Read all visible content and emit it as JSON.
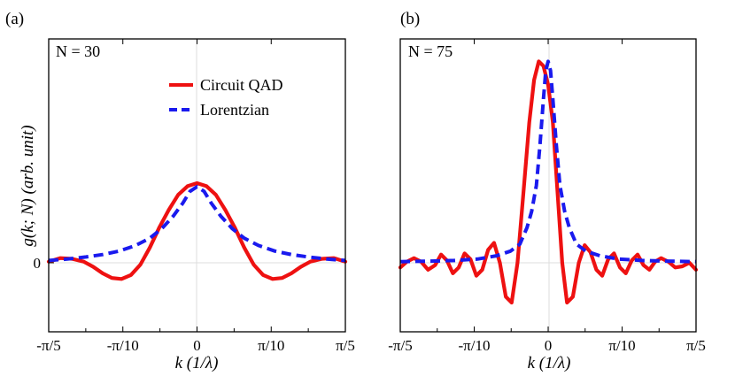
{
  "figure": {
    "colors": {
      "circuit": "#ee1111",
      "lorentzian": "#1a1aee",
      "axes": "#000000",
      "grid": "#dddddd"
    }
  },
  "chart_data": [
    {
      "type": "line",
      "panel_label": "(a)",
      "annotation": "N = 30",
      "xlabel": "k (1/λ)",
      "ylabel": "g(k; N) (arb. unit)",
      "xlim": [
        -0.6283,
        0.6283
      ],
      "ylim": [
        -0.26,
        0.88
      ],
      "x_ticks": [
        {
          "value": -0.6283,
          "label": "-π/5"
        },
        {
          "value": -0.3142,
          "label": "-π/10"
        },
        {
          "value": 0,
          "label": "0"
        },
        {
          "value": 0.3142,
          "label": "π/10"
        },
        {
          "value": 0.6283,
          "label": "π/5"
        }
      ],
      "y_ticks": [
        {
          "value": 0,
          "label": "0"
        }
      ],
      "grid": "faint gridlines at x = 0 and y = 0",
      "legend_placement": "top-center",
      "series": [
        {
          "name": "Circuit QAD",
          "style": "solid",
          "color": "#ee1111",
          "x": [
            -0.63,
            -0.58,
            -0.53,
            -0.48,
            -0.44,
            -0.4,
            -0.36,
            -0.32,
            -0.28,
            -0.24,
            -0.2,
            -0.16,
            -0.12,
            -0.08,
            -0.04,
            0,
            0.04,
            0.08,
            0.12,
            0.16,
            0.2,
            0.24,
            0.28,
            0.32,
            0.36,
            0.4,
            0.44,
            0.48,
            0.53,
            0.58,
            0.63
          ],
          "y": [
            0.005,
            0.02,
            0.017,
            0.005,
            -0.017,
            -0.045,
            -0.065,
            -0.069,
            -0.052,
            -0.008,
            0.065,
            0.15,
            0.225,
            0.29,
            0.327,
            0.34,
            0.327,
            0.29,
            0.225,
            0.15,
            0.065,
            -0.008,
            -0.052,
            -0.069,
            -0.065,
            -0.045,
            -0.017,
            0.005,
            0.017,
            0.02,
            0.005
          ]
        },
        {
          "name": "Lorentzian",
          "style": "dashed",
          "color": "#1a1aee",
          "x": [
            -0.63,
            -0.55,
            -0.47,
            -0.4,
            -0.33,
            -0.26,
            -0.2,
            -0.15,
            -0.1,
            -0.06,
            -0.03,
            0,
            0.03,
            0.06,
            0.1,
            0.15,
            0.2,
            0.26,
            0.33,
            0.4,
            0.47,
            0.55,
            0.63
          ],
          "y": [
            0.01,
            0.016,
            0.025,
            0.035,
            0.05,
            0.074,
            0.105,
            0.145,
            0.2,
            0.255,
            0.305,
            0.325,
            0.305,
            0.255,
            0.2,
            0.145,
            0.105,
            0.074,
            0.05,
            0.035,
            0.025,
            0.016,
            0.01
          ]
        }
      ]
    },
    {
      "type": "line",
      "panel_label": "(b)",
      "annotation": "N = 75",
      "xlabel": "k (1/λ)",
      "ylabel": "",
      "xlim": [
        -0.6283,
        0.6283
      ],
      "ylim": [
        -0.26,
        0.88
      ],
      "x_ticks": [
        {
          "value": -0.6283,
          "label": "-π/5"
        },
        {
          "value": -0.3142,
          "label": "-π/10"
        },
        {
          "value": 0,
          "label": "0"
        },
        {
          "value": 0.3142,
          "label": "π/10"
        },
        {
          "value": 0.6283,
          "label": "π/5"
        }
      ],
      "grid": "faint gridlines at x = 0 and y = 0",
      "series": [
        {
          "name": "Circuit QAD",
          "style": "solid",
          "color": "#ee1111",
          "x": [
            -0.63,
            -0.6,
            -0.57,
            -0.54,
            -0.51,
            -0.48,
            -0.455,
            -0.43,
            -0.405,
            -0.38,
            -0.355,
            -0.33,
            -0.305,
            -0.28,
            -0.255,
            -0.23,
            -0.205,
            -0.18,
            -0.155,
            -0.13,
            -0.105,
            -0.08,
            -0.06,
            -0.04,
            -0.02,
            0,
            0.02,
            0.04,
            0.06,
            0.08,
            0.105,
            0.13,
            0.155,
            0.18,
            0.205,
            0.23,
            0.255,
            0.28,
            0.305,
            0.33,
            0.355,
            0.38,
            0.405,
            0.43,
            0.455,
            0.48,
            0.51,
            0.54,
            0.57,
            0.6,
            0.63
          ],
          "y": [
            -0.02,
            0.005,
            0.02,
            0.005,
            -0.03,
            -0.01,
            0.035,
            0.01,
            -0.045,
            -0.02,
            0.04,
            0.015,
            -0.055,
            -0.03,
            0.055,
            0.085,
            0.0,
            -0.145,
            -0.17,
            0.0,
            0.3,
            0.6,
            0.78,
            0.86,
            0.84,
            0.76,
            0.6,
            0.3,
            0.0,
            -0.17,
            -0.145,
            0.0,
            0.075,
            0.045,
            -0.03,
            -0.055,
            0.015,
            0.04,
            -0.02,
            -0.045,
            0.01,
            0.035,
            -0.01,
            -0.03,
            0.005,
            0.02,
            0.005,
            -0.02,
            -0.015,
            0.0,
            -0.03
          ]
        },
        {
          "name": "Lorentzian",
          "style": "dashed",
          "color": "#1a1aee",
          "x": [
            -0.63,
            -0.5,
            -0.4,
            -0.3,
            -0.22,
            -0.16,
            -0.12,
            -0.09,
            -0.07,
            -0.05,
            -0.035,
            -0.02,
            -0.01,
            0.0,
            0.01,
            0.02,
            0.035,
            0.05,
            0.07,
            0.09,
            0.12,
            0.16,
            0.22,
            0.3,
            0.4,
            0.5,
            0.63
          ],
          "y": [
            0.005,
            0.007,
            0.01,
            0.016,
            0.03,
            0.05,
            0.08,
            0.15,
            0.22,
            0.33,
            0.5,
            0.7,
            0.82,
            0.86,
            0.82,
            0.7,
            0.5,
            0.33,
            0.22,
            0.15,
            0.08,
            0.05,
            0.03,
            0.016,
            0.01,
            0.007,
            0.005
          ]
        }
      ]
    }
  ]
}
